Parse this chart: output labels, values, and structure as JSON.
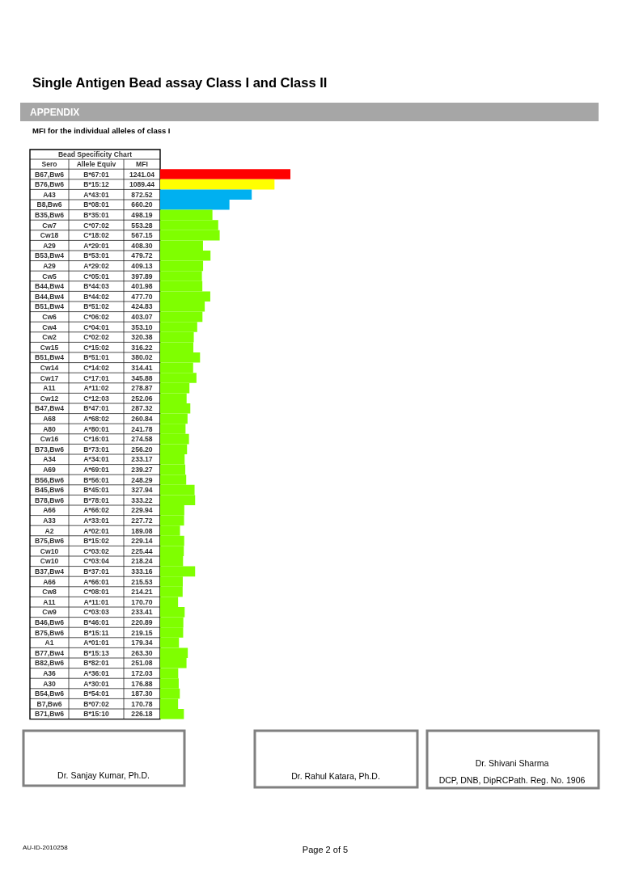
{
  "chart_data": {
    "type": "bar",
    "orientation": "horizontal",
    "title": "Single Antigen Bead assay Class I and Class II",
    "subtitle": "MFI for the individual alleles of class I",
    "xlabel": "MFI",
    "tick_labels": "y",
    "categories": [
      "B67,Bw6",
      "B76,Bw6",
      "A43",
      "B8,Bw6",
      "B35,Bw6",
      "Cw7",
      "Cw18",
      "A29",
      "B53,Bw4",
      "A29",
      "Cw5",
      "B44,Bw4",
      "B44,Bw4",
      "B51,Bw4",
      "Cw6",
      "Cw4",
      "Cw2",
      "Cw15",
      "B51,Bw4",
      "Cw14",
      "Cw17",
      "A11",
      "Cw12",
      "B47,Bw4",
      "A68",
      "A80",
      "Cw16",
      "B73,Bw6",
      "A34",
      "A69",
      "B56,Bw6",
      "B45,Bw6",
      "B78,Bw6",
      "A66",
      "A33",
      "A2",
      "B75,Bw6",
      "Cw10",
      "Cw10",
      "B37,Bw4",
      "A66",
      "Cw8",
      "A11",
      "Cw9",
      "B46,Bw6",
      "B75,Bw6",
      "A1",
      "B77,Bw4",
      "B82,Bw6",
      "A36",
      "A30",
      "B54,Bw6",
      "B7,Bw6",
      "B71,Bw6"
    ],
    "y2_categories": [
      "B*67:01",
      "B*15:12",
      "A*43:01",
      "B*08:01",
      "B*35:01",
      "C*07:02",
      "C*18:02",
      "A*29:01",
      "B*53:01",
      "A*29:02",
      "C*05:01",
      "B*44:03",
      "B*44:02",
      "B*51:02",
      "C*06:02",
      "C*04:01",
      "C*02:02",
      "C*15:02",
      "B*51:01",
      "C*14:02",
      "C*17:01",
      "A*11:02",
      "C*12:03",
      "B*47:01",
      "A*68:02",
      "A*80:01",
      "C*16:01",
      "B*73:01",
      "A*34:01",
      "A*69:01",
      "B*56:01",
      "B*45:01",
      "B*78:01",
      "A*66:02",
      "A*33:01",
      "A*02:01",
      "B*15:02",
      "C*03:02",
      "C*03:04",
      "B*37:01",
      "A*66:01",
      "C*08:01",
      "A*11:01",
      "C*03:03",
      "B*46:01",
      "B*15:11",
      "A*01:01",
      "B*15:13",
      "B*82:01",
      "A*36:01",
      "A*30:01",
      "B*54:01",
      "B*07:02",
      "B*15:10"
    ],
    "values": [
      1241.04,
      1089.44,
      872.52,
      660.2,
      498.19,
      553.28,
      567.15,
      408.3,
      479.72,
      409.13,
      397.89,
      401.98,
      477.7,
      424.83,
      403.07,
      353.1,
      320.38,
      316.22,
      380.02,
      314.41,
      345.88,
      278.87,
      252.06,
      287.32,
      260.84,
      241.78,
      274.58,
      256.2,
      233.17,
      239.27,
      248.29,
      327.94,
      333.22,
      229.94,
      227.72,
      189.08,
      229.14,
      225.44,
      218.24,
      333.16,
      215.53,
      214.21,
      170.7,
      233.41,
      220.89,
      219.15,
      179.34,
      263.3,
      251.08,
      172.03,
      176.88,
      187.3,
      170.78,
      226.18
    ],
    "value_labels": [
      "1241.04",
      "1089.44",
      "872.52",
      "660.20",
      "498.19",
      "553.28",
      "567.15",
      "408.30",
      "479.72",
      "409.13",
      "397.89",
      "401.98",
      "477.70",
      "424.83",
      "403.07",
      "353.10",
      "320.38",
      "316.22",
      "380.02",
      "314.41",
      "345.88",
      "278.87",
      "252.06",
      "287.32",
      "260.84",
      "241.78",
      "274.58",
      "256.20",
      "233.17",
      "239.27",
      "248.29",
      "327.94",
      "333.22",
      "229.94",
      "227.72",
      "189.08",
      "229.14",
      "225.44",
      "218.24",
      "333.16",
      "215.53",
      "214.21",
      "170.70",
      "233.41",
      "220.89",
      "219.15",
      "179.34",
      "263.30",
      "251.08",
      "172.03",
      "176.88",
      "187.30",
      "170.78",
      "226.18"
    ],
    "colors": [
      "#ff0000",
      "#ffff00",
      "#00b0f0",
      "#00b0f0",
      "#7fff00",
      "#7fff00",
      "#7fff00",
      "#7fff00",
      "#7fff00",
      "#7fff00",
      "#7fff00",
      "#7fff00",
      "#7fff00",
      "#7fff00",
      "#7fff00",
      "#7fff00",
      "#7fff00",
      "#7fff00",
      "#7fff00",
      "#7fff00",
      "#7fff00",
      "#7fff00",
      "#7fff00",
      "#7fff00",
      "#7fff00",
      "#7fff00",
      "#7fff00",
      "#7fff00",
      "#7fff00",
      "#7fff00",
      "#7fff00",
      "#7fff00",
      "#7fff00",
      "#7fff00",
      "#7fff00",
      "#7fff00",
      "#7fff00",
      "#7fff00",
      "#7fff00",
      "#7fff00",
      "#7fff00",
      "#7fff00",
      "#7fff00",
      "#7fff00",
      "#7fff00",
      "#7fff00",
      "#7fff00",
      "#7fff00",
      "#7fff00",
      "#7fff00",
      "#7fff00",
      "#7fff00",
      "#7fff00",
      "#7fff00"
    ],
    "annotations": [
      "APPENDIX",
      "Bead Specificity Chart",
      "Sero",
      "Allele Equiv",
      "Dr. Sanjay Kumar, Ph.D.",
      "Dr. Rahul Katara, Ph.D.",
      "Dr. Shivani Sharma",
      "DCP, DNB, DipRCPath. Reg. No. 1906",
      "AU-ID-2010258",
      "Page 2 of 5"
    ]
  }
}
